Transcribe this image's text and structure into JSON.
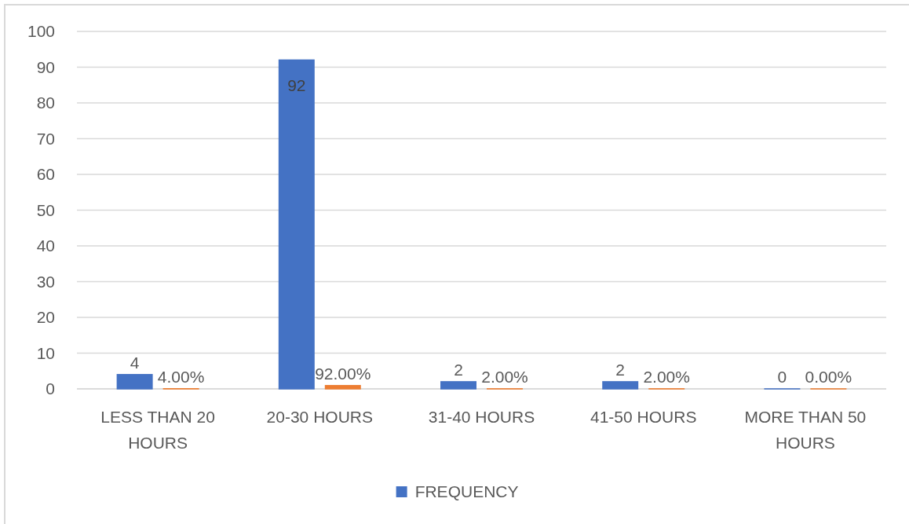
{
  "chart_data": {
    "type": "bar",
    "categories": [
      "LESS THAN 20 HOURS",
      "20-30 HOURS",
      "31-40 HOURS",
      "41-50 HOURS",
      "MORE THAN 50 HOURS"
    ],
    "series": [
      {
        "name": "FREQUENCY",
        "color": "#4472c4",
        "values": [
          4,
          92,
          2,
          2,
          0
        ],
        "value_labels": [
          "4",
          "92",
          "2",
          "2",
          "0"
        ]
      },
      {
        "color": "#ed7d31",
        "values": [
          0.04,
          0.92,
          0.02,
          0.02,
          0
        ],
        "value_labels": [
          "4.00%",
          "92.00%",
          "2.00%",
          "2.00%",
          "0.00%"
        ]
      }
    ],
    "ylim": [
      0,
      100
    ],
    "yticks": [
      0,
      10,
      20,
      30,
      40,
      50,
      60,
      70,
      80,
      90,
      100
    ],
    "grid": "y",
    "legend": "bottom"
  }
}
